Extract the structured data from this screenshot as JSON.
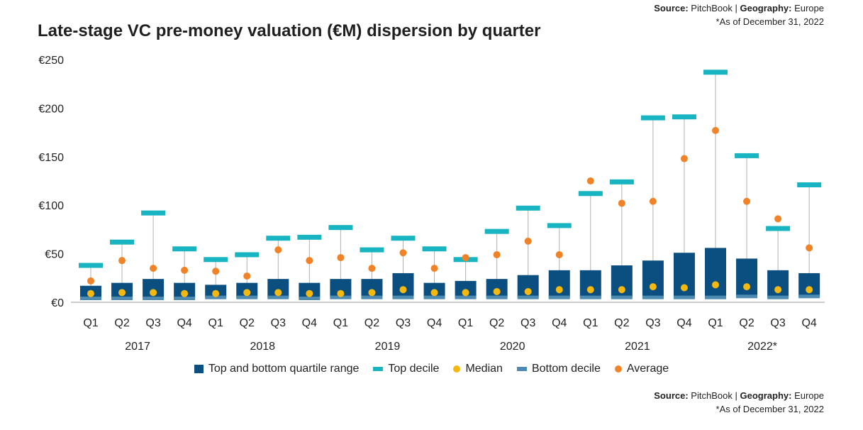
{
  "header": {
    "title": "Late-stage VC pre-money valuation (€M) dispersion by quarter",
    "source_label": "Source:",
    "source_value": "PitchBook",
    "separator": "|",
    "geo_label": "Geography:",
    "geo_value": "Europe",
    "note": "*As of December 31, 2022"
  },
  "legend": {
    "quartile": "Top and bottom quartile range",
    "top_decile": "Top decile",
    "median": "Median",
    "bottom_decile": "Bottom decile",
    "average": "Average"
  },
  "colors": {
    "quartile": "#0b4f80",
    "top_decile": "#19b4c1",
    "bottom_decile": "#4d8ab2",
    "median": "#f4b80e",
    "average": "#f08328",
    "whisker": "#b0b0b0",
    "axis": "#999999"
  },
  "chart_data": {
    "type": "box",
    "title": "Late-stage VC pre-money valuation (€M) dispersion by quarter",
    "ylim": [
      0,
      250
    ],
    "yticks": [
      0,
      50,
      100,
      150,
      200,
      250
    ],
    "ytick_labels": [
      "€0",
      "€50",
      "€100",
      "€150",
      "€200",
      "€250"
    ],
    "grid": false,
    "legend_position": "bottom",
    "categories": [
      "Q1",
      "Q2",
      "Q3",
      "Q4",
      "Q1",
      "Q2",
      "Q3",
      "Q4",
      "Q1",
      "Q2",
      "Q3",
      "Q4",
      "Q1",
      "Q2",
      "Q3",
      "Q4",
      "Q1",
      "Q2",
      "Q3",
      "Q4",
      "Q1",
      "Q2",
      "Q3",
      "Q4"
    ],
    "years": [
      "2017",
      "2018",
      "2019",
      "2020",
      "2021",
      "2022*"
    ],
    "series": [
      {
        "name": "Top decile",
        "values": [
          38,
          62,
          92,
          55,
          44,
          49,
          66,
          67,
          77,
          54,
          66,
          55,
          44,
          73,
          97,
          79,
          112,
          124,
          190,
          191,
          237,
          151,
          76,
          121
        ]
      },
      {
        "name": "Top and bottom quartile range",
        "values": [
          17,
          20,
          24,
          20,
          18,
          20,
          24,
          20,
          24,
          24,
          30,
          20,
          22,
          24,
          28,
          33,
          33,
          38,
          43,
          51,
          56,
          45,
          33,
          30
        ]
      },
      {
        "name": "Average",
        "values": [
          22,
          43,
          35,
          33,
          32,
          27,
          54,
          43,
          46,
          35,
          51,
          35,
          46,
          49,
          63,
          49,
          125,
          102,
          104,
          148,
          177,
          104,
          86,
          56
        ]
      },
      {
        "name": "Median",
        "values": [
          9,
          10,
          10,
          9,
          9,
          10,
          10,
          9,
          9,
          10,
          13,
          10,
          10,
          11,
          11,
          13,
          13,
          13,
          16,
          15,
          18,
          16,
          13,
          13
        ]
      },
      {
        "name": "Bottom decile",
        "values": [
          4,
          4,
          4,
          4,
          5,
          5,
          5,
          4,
          5,
          5,
          5,
          5,
          5,
          5,
          5,
          5,
          5,
          5,
          5,
          5,
          5,
          6,
          5,
          6
        ]
      }
    ]
  }
}
